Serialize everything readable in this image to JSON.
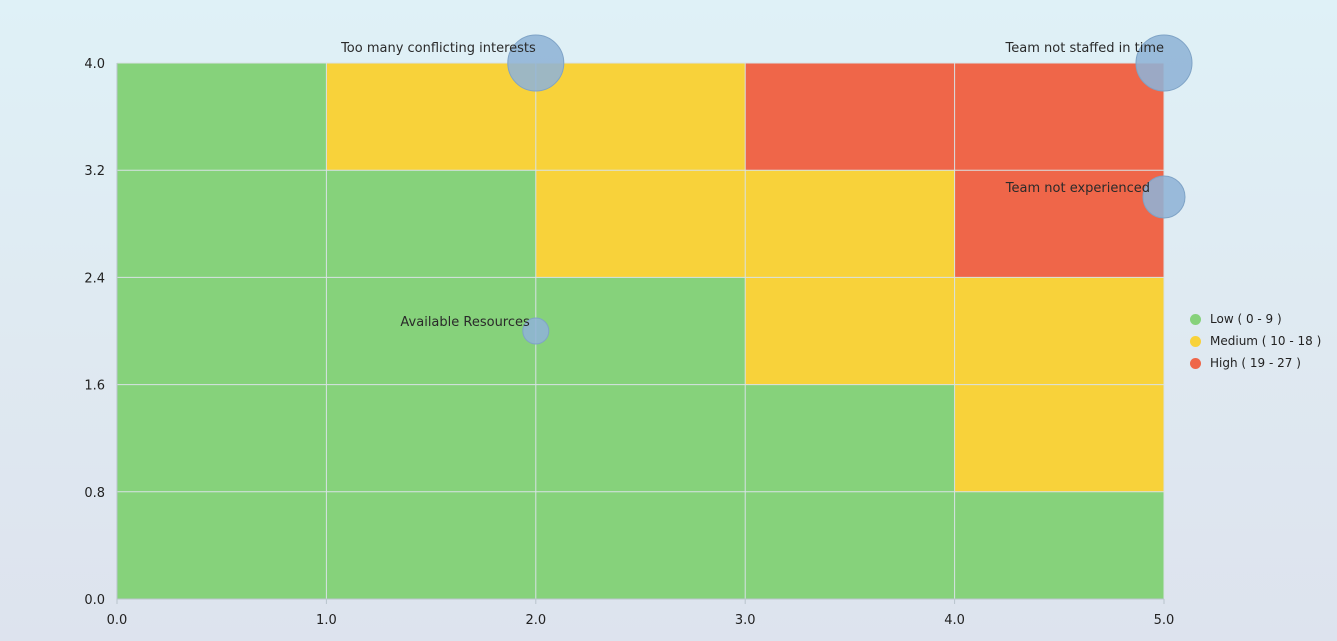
{
  "chart_data": {
    "type": "heatmap",
    "title": "",
    "xlabel": "",
    "ylabel": "",
    "xlim": [
      0,
      5
    ],
    "ylim": [
      0,
      4
    ],
    "x_ticks": [
      "0.0",
      "1.0",
      "2.0",
      "3.0",
      "4.0",
      "5.0"
    ],
    "y_ticks": [
      "0.0",
      "0.8",
      "1.6",
      "2.4",
      "3.2",
      "4.0"
    ],
    "y_tick_values": [
      0,
      0.8,
      1.6,
      2.4,
      3.2,
      4.0
    ],
    "grid": true,
    "level_colors": {
      "low": "#86d27b",
      "medium": "#f8d23a",
      "high": "#ef6649"
    },
    "cells": [
      [
        "low",
        "low",
        "low",
        "low",
        "low"
      ],
      [
        "low",
        "low",
        "low",
        "low",
        "medium"
      ],
      [
        "low",
        "low",
        "low",
        "medium",
        "medium"
      ],
      [
        "low",
        "low",
        "medium",
        "medium",
        "high"
      ],
      [
        "low",
        "medium",
        "medium",
        "high",
        "high"
      ]
    ],
    "bubbles": [
      {
        "label": "Too many conflicting interests",
        "x": 2.0,
        "y": 4.0,
        "size": "large",
        "label_position": "top-left"
      },
      {
        "label": "Team not staffed in time",
        "x": 5.0,
        "y": 4.0,
        "size": "large",
        "label_position": "top-left"
      },
      {
        "label": "Team not experienced",
        "x": 5.0,
        "y": 3.0,
        "size": "medium",
        "label_position": "left"
      },
      {
        "label": "Available Resources",
        "x": 2.0,
        "y": 2.0,
        "size": "small",
        "label_position": "left"
      }
    ],
    "bubble_color": "#8fb3d6",
    "legend_placement": "right",
    "legend": [
      {
        "label": "Low ( 0 - 9 )",
        "color": "#86d27b"
      },
      {
        "label": "Medium ( 10 - 18 )",
        "color": "#f8d23a"
      },
      {
        "label": "High ( 19 - 27 )",
        "color": "#ef6649"
      }
    ]
  }
}
